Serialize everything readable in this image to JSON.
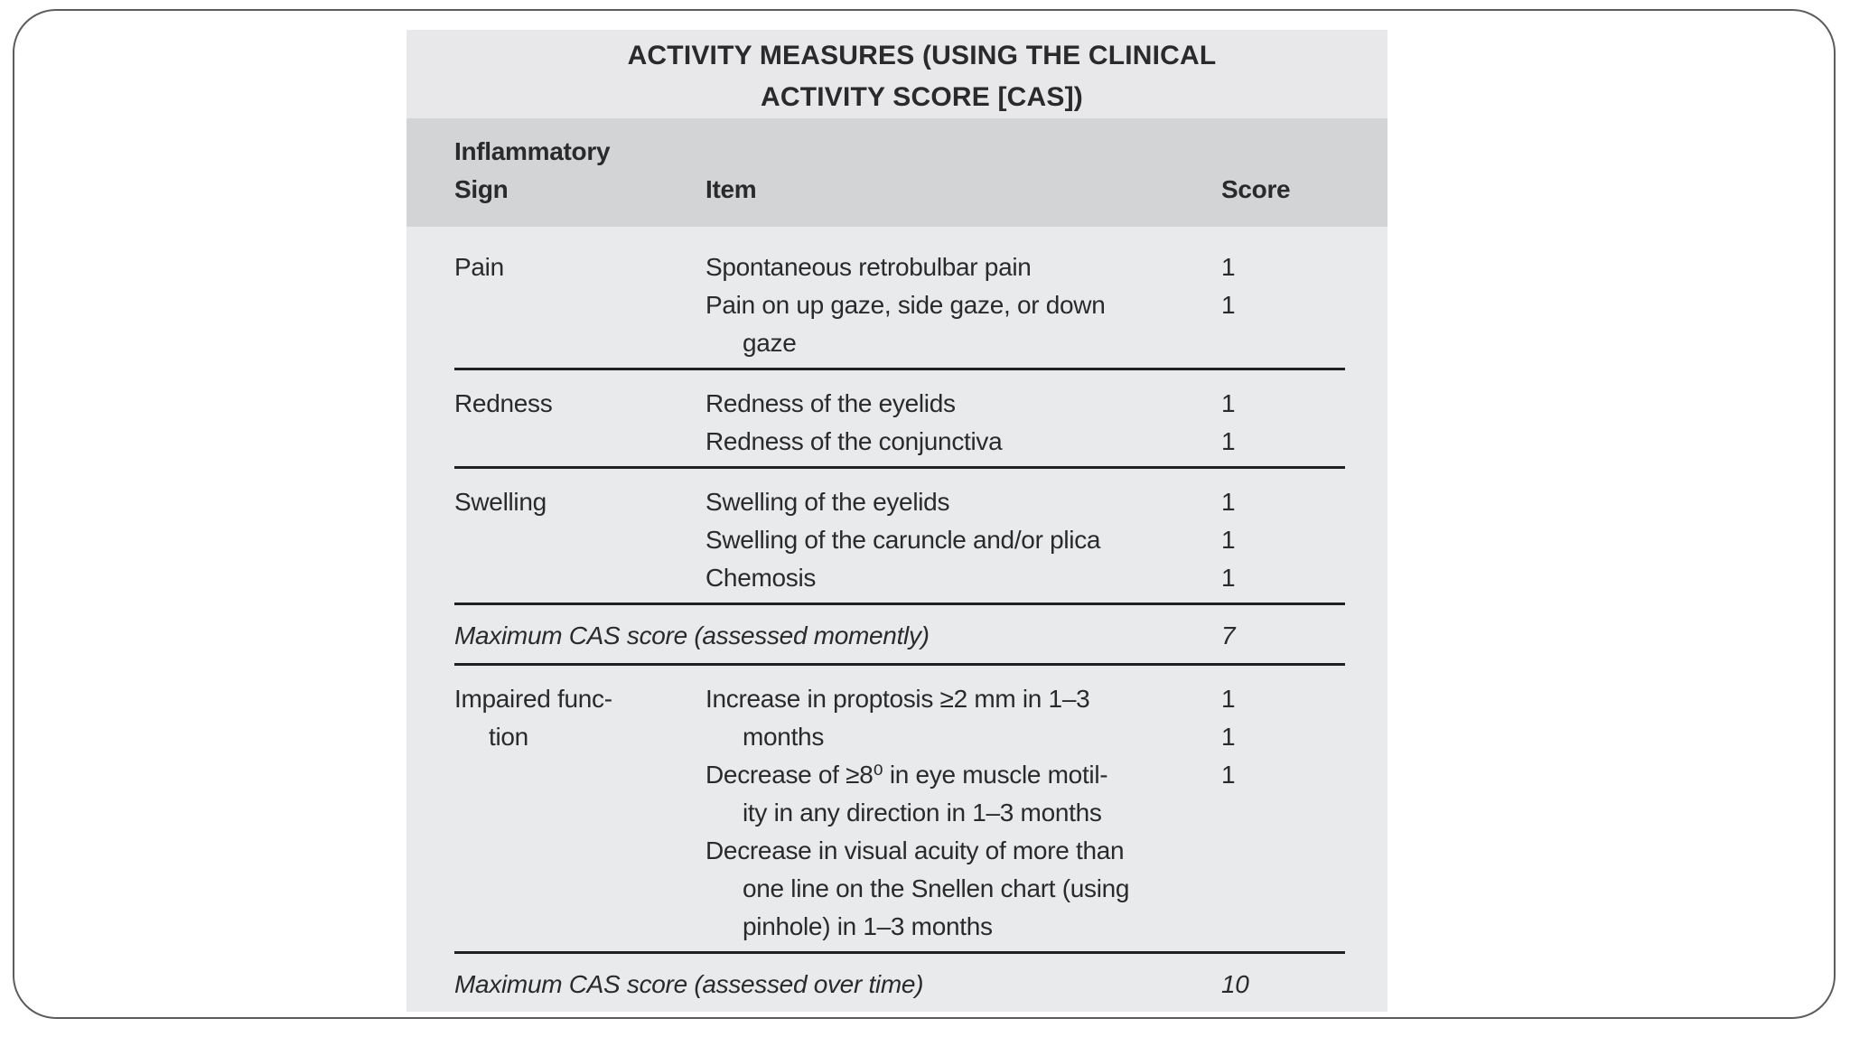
{
  "colors": {
    "title_bg": "#e8e8ea",
    "header_bg": "#d2d4d6",
    "body_bg": "#e9eaec",
    "rule": "#202124",
    "text": "#2a2a2c",
    "frame_border": "#5b5c5e"
  },
  "table": {
    "title_line1": "ACTIVITY MEASURES (USING THE CLINICAL",
    "title_line2": "ACTIVITY SCORE [CAS])",
    "header": {
      "sign_line1": "Inflammatory",
      "sign_line2": "Sign",
      "item": "Item",
      "score": "Score"
    },
    "sections": [
      {
        "name": "pain",
        "rows": [
          {
            "sign": "Pain",
            "item": "Spontaneous retrobulbar pain",
            "score": "1"
          },
          {
            "sign": "",
            "item": "Pain on up gaze, side gaze, or down",
            "score": "1"
          },
          {
            "sign": "",
            "item": "gaze",
            "score": ""
          }
        ]
      },
      {
        "name": "redness",
        "rows": [
          {
            "sign": "Redness",
            "item": "Redness of the eyelids",
            "score": "1"
          },
          {
            "sign": "",
            "item": "Redness of the conjunctiva",
            "score": "1"
          }
        ]
      },
      {
        "name": "swelling",
        "rows": [
          {
            "sign": "Swelling",
            "item": "Swelling of the eyelids",
            "score": "1"
          },
          {
            "sign": "",
            "item": "Swelling of the caruncle and/or plica",
            "score": "1"
          },
          {
            "sign": "",
            "item": "Chemosis",
            "score": "1"
          }
        ]
      },
      {
        "name": "max-cas-momently",
        "summary_label": "Maximum CAS score (assessed momently)",
        "summary_score": "7"
      },
      {
        "name": "impaired-function",
        "rows": [
          {
            "sign": "Impaired func-",
            "item": "Increase in proptosis ≥2 mm in 1–3",
            "score": "1"
          },
          {
            "sign": "tion",
            "item": "months",
            "score": "1"
          },
          {
            "sign": "",
            "item": "Decrease of ≥8⁰ in eye muscle motil-",
            "score": "1"
          },
          {
            "sign": "",
            "item": "ity in any direction in 1–3 months",
            "score": ""
          },
          {
            "sign": "",
            "item": "Decrease in visual acuity of more than",
            "score": ""
          },
          {
            "sign": "",
            "item": "one line on the Snellen chart (using",
            "score": ""
          },
          {
            "sign": "",
            "item": "pinhole) in 1–3 months",
            "score": ""
          }
        ]
      },
      {
        "name": "max-cas-over-time",
        "summary_label": "Maximum CAS score (assessed over time)",
        "summary_score": "10"
      }
    ]
  }
}
